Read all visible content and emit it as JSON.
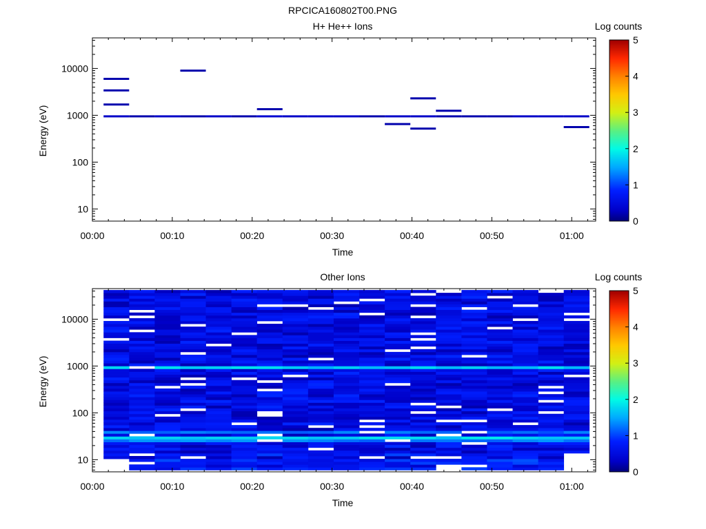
{
  "figure": {
    "filename": "RPCICA160802T00.PNG"
  },
  "chart_data": [
    {
      "type": "heatmap",
      "title": "H+ He++ Ions",
      "xlabel": "Time",
      "ylabel": "Energy (eV)",
      "x_ticks": [
        "00:00",
        "00:10",
        "00:20",
        "00:30",
        "00:40",
        "00:50",
        "01:00"
      ],
      "xlim_minutes": [
        0,
        63
      ],
      "y_scale": "log",
      "ylim": [
        5.5,
        45000
      ],
      "y_ticks": [
        "10",
        "100",
        "1000",
        "10000"
      ],
      "colorbar": {
        "label": "Log counts",
        "range": [
          0,
          5
        ],
        "ticks": [
          "0",
          "1",
          "2",
          "3",
          "4",
          "5"
        ],
        "colormap": "rainbow"
      },
      "time_bins_start_minutes": [
        1.4,
        4.6,
        7.8,
        11.0,
        14.2,
        17.4,
        20.6,
        23.8,
        27.0,
        30.2,
        33.4,
        36.6,
        39.8,
        43.0,
        46.2,
        49.4,
        52.6,
        55.8,
        59.0,
        62.2
      ],
      "cells": [
        {
          "x0": 1.4,
          "x1": 4.6,
          "e": 950,
          "v": 0.3
        },
        {
          "x0": 4.6,
          "x1": 7.8,
          "e": 950,
          "v": 0.2
        },
        {
          "x0": 7.8,
          "x1": 11.0,
          "e": 950,
          "v": 0.3
        },
        {
          "x0": 11.0,
          "x1": 14.2,
          "e": 950,
          "v": 0.2
        },
        {
          "x0": 14.2,
          "x1": 17.4,
          "e": 950,
          "v": 0.3
        },
        {
          "x0": 17.4,
          "x1": 20.6,
          "e": 950,
          "v": 0.2
        },
        {
          "x0": 20.6,
          "x1": 23.8,
          "e": 950,
          "v": 0.4
        },
        {
          "x0": 23.8,
          "x1": 27.0,
          "e": 950,
          "v": 0.3
        },
        {
          "x0": 27.0,
          "x1": 30.2,
          "e": 950,
          "v": 0.3
        },
        {
          "x0": 30.2,
          "x1": 33.4,
          "e": 950,
          "v": 0.3
        },
        {
          "x0": 33.4,
          "x1": 36.6,
          "e": 950,
          "v": 0.2
        },
        {
          "x0": 36.6,
          "x1": 39.8,
          "e": 950,
          "v": 0.3
        },
        {
          "x0": 39.8,
          "x1": 43.0,
          "e": 950,
          "v": 0.3
        },
        {
          "x0": 43.0,
          "x1": 46.2,
          "e": 950,
          "v": 0.2
        },
        {
          "x0": 46.2,
          "x1": 49.4,
          "e": 950,
          "v": 0.2
        },
        {
          "x0": 49.4,
          "x1": 52.6,
          "e": 950,
          "v": 0.2
        },
        {
          "x0": 52.6,
          "x1": 55.8,
          "e": 950,
          "v": 0.3
        },
        {
          "x0": 55.8,
          "x1": 59.0,
          "e": 950,
          "v": 0.3
        },
        {
          "x0": 59.0,
          "x1": 62.2,
          "e": 950,
          "v": 0.3
        },
        {
          "x0": 1.4,
          "x1": 4.6,
          "e": 6000,
          "v": 0.2
        },
        {
          "x0": 1.4,
          "x1": 4.6,
          "e": 3400,
          "v": 0.2
        },
        {
          "x0": 1.4,
          "x1": 4.6,
          "e": 1700,
          "v": 0.2
        },
        {
          "x0": 11.0,
          "x1": 14.2,
          "e": 9000,
          "v": 0.2
        },
        {
          "x0": 20.6,
          "x1": 23.8,
          "e": 1350,
          "v": 0.2
        },
        {
          "x0": 36.6,
          "x1": 39.8,
          "e": 650,
          "v": 0.2
        },
        {
          "x0": 39.8,
          "x1": 43.0,
          "e": 2300,
          "v": 0.2
        },
        {
          "x0": 39.8,
          "x1": 43.0,
          "e": 520,
          "v": 0.2
        },
        {
          "x0": 43.0,
          "x1": 46.2,
          "e": 1250,
          "v": 0.2
        },
        {
          "x0": 59.0,
          "x1": 62.2,
          "e": 560,
          "v": 0.2
        }
      ]
    },
    {
      "type": "heatmap",
      "title": "Other Ions",
      "xlabel": "Time",
      "ylabel": "Energy (eV)",
      "x_ticks": [
        "00:00",
        "00:10",
        "00:20",
        "00:30",
        "00:40",
        "00:50",
        "01:00"
      ],
      "xlim_minutes": [
        0,
        63
      ],
      "y_scale": "log",
      "ylim": [
        5.5,
        45000
      ],
      "y_ticks": [
        "10",
        "100",
        "1000",
        "10000"
      ],
      "colorbar": {
        "label": "Log counts",
        "range": [
          0,
          5
        ],
        "ticks": [
          "0",
          "1",
          "2",
          "3",
          "4",
          "5"
        ],
        "colormap": "rainbow"
      },
      "time_bins_start_minutes": [
        1.4,
        4.6,
        7.8,
        11.0,
        14.2,
        17.4,
        20.6,
        23.8,
        27.0,
        30.2,
        33.4,
        36.6,
        39.8,
        43.0,
        46.2,
        49.4,
        52.6,
        55.8,
        59.0,
        62.2
      ],
      "energy_range_eV": [
        6,
        42000
      ],
      "dominant_bands": [
        {
          "e": 950,
          "v": 1.7
        },
        {
          "e": 24,
          "v": 1.3
        },
        {
          "e": 30,
          "v": 1.75
        },
        {
          "e": 37,
          "v": 1.2
        }
      ],
      "background_level_range": [
        0.2,
        0.9
      ],
      "low_energy_rows_eV": [
        6,
        8,
        10,
        13
      ],
      "empty_cells": [
        {
          "x0": 1.4,
          "x1": 4.6,
          "e_max": 11
        },
        {
          "x0": 43.0,
          "x1": 46.2,
          "e_max": 8
        },
        {
          "x0": 59.0,
          "x1": 62.2,
          "e_max": 14
        }
      ]
    }
  ]
}
